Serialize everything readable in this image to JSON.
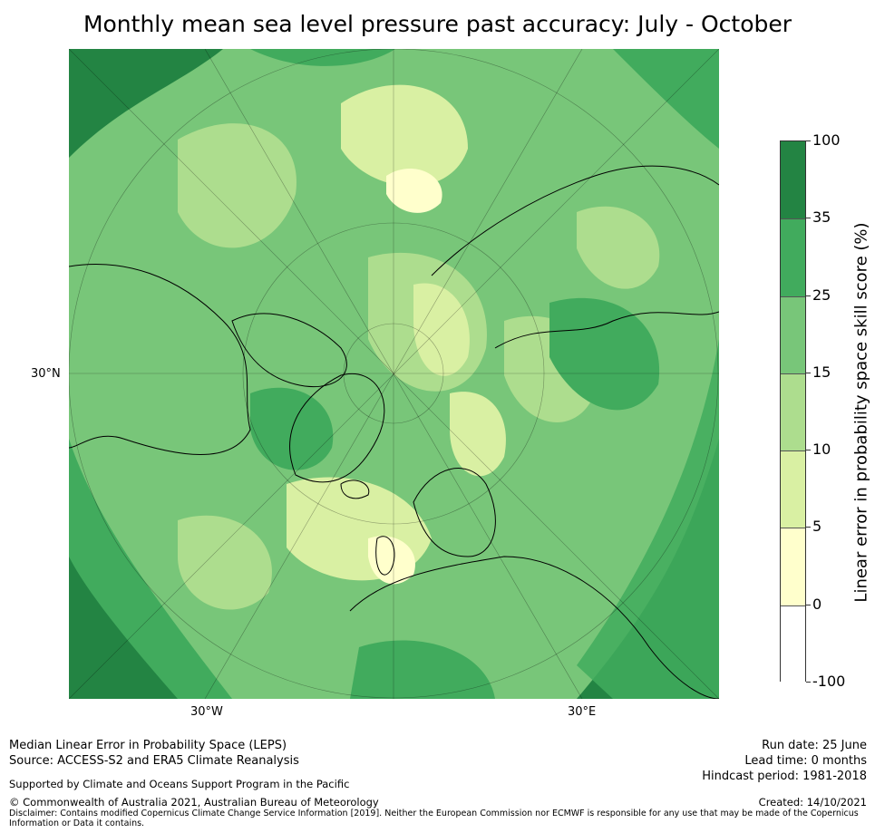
{
  "title": "Monthly mean sea level pressure past accuracy: July - October",
  "map": {
    "projection": "north-polar-stereographic",
    "lat_label": "30°N",
    "lon_labels": [
      "30°W",
      "30°E"
    ],
    "colors": {
      "ocean_bg": "#7dc47c",
      "level_0_5": "#ffffcc",
      "level_5_10": "#d9f0a3",
      "level_10_15": "#addd8e",
      "level_15_25": "#78c679",
      "level_25_35": "#41ab5d",
      "level_35_100": "#238443",
      "coast": "#000000"
    }
  },
  "colorbar": {
    "label": "Linear error in probability space skill score (%)",
    "ticks": [
      "100",
      "35",
      "25",
      "15",
      "10",
      "5",
      "0",
      "-100"
    ],
    "segments": [
      {
        "range": "35 to 100",
        "color": "#238443"
      },
      {
        "range": "25 to 35",
        "color": "#41ab5d"
      },
      {
        "range": "15 to 25",
        "color": "#78c679"
      },
      {
        "range": "10 to 15",
        "color": "#addd8e"
      },
      {
        "range": "5 to 10",
        "color": "#d9f0a3"
      },
      {
        "range": "0 to 5",
        "color": "#ffffcc"
      },
      {
        "range": "-100 to 0",
        "color": "#ffffff"
      }
    ]
  },
  "footer": {
    "line1": "Median Linear Error in Probability Space (LEPS)",
    "line2": "Source: ACCESS-S2 and ERA5 Climate Reanalysis",
    "support": "Supported by Climate and Oceans Support Program in the Pacific",
    "copyright": "© Commonwealth of Australia 2021, Australian Bureau of Meteorology",
    "disclaimer1": "Disclaimer: Contains modified Copernicus Climate Change Service Information [2019]. Neither the European Commission nor ECMWF is responsible for any use that may be made of the Copernicus",
    "disclaimer2": "Information or Data it contains.",
    "run_date": "Run date: 25 June",
    "lead_time": "Lead time: 0 months",
    "hindcast": "Hindcast period: 1981-2018",
    "created": "Created: 14/10/2021"
  }
}
